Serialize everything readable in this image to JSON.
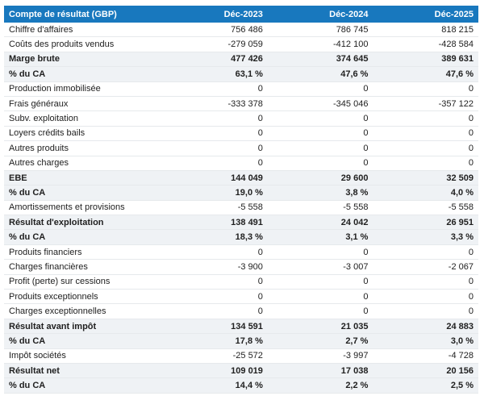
{
  "colors": {
    "header_bg": "#1878be",
    "header_text": "#ffffff",
    "emphasis_row_bg": "#eff2f5",
    "row_border": "#e6e9ec",
    "body_text": "#212121"
  },
  "chart_data": {
    "type": "table",
    "title": "Compte de résultat (GBP)",
    "columns": [
      "Compte de résultat (GBP)",
      "Déc-2023",
      "Déc-2024",
      "Déc-2025"
    ],
    "rows": [
      {
        "label": "Chiffre d'affaires",
        "values": [
          "756 486",
          "786 745",
          "818 215"
        ],
        "emphasis": false
      },
      {
        "label": "Coûts des produits vendus",
        "values": [
          "-279 059",
          "-412 100",
          "-428 584"
        ],
        "emphasis": false
      },
      {
        "label": "Marge brute",
        "values": [
          "477 426",
          "374 645",
          "389 631"
        ],
        "emphasis": true
      },
      {
        "label": "% du CA",
        "values": [
          "63,1 %",
          "47,6 %",
          "47,6 %"
        ],
        "emphasis": true
      },
      {
        "label": "Production immobilisée",
        "values": [
          "0",
          "0",
          "0"
        ],
        "emphasis": false
      },
      {
        "label": "Frais généraux",
        "values": [
          "-333 378",
          "-345 046",
          "-357 122"
        ],
        "emphasis": false
      },
      {
        "label": "Subv. exploitation",
        "values": [
          "0",
          "0",
          "0"
        ],
        "emphasis": false
      },
      {
        "label": "Loyers crédits bails",
        "values": [
          "0",
          "0",
          "0"
        ],
        "emphasis": false
      },
      {
        "label": "Autres produits",
        "values": [
          "0",
          "0",
          "0"
        ],
        "emphasis": false
      },
      {
        "label": "Autres charges",
        "values": [
          "0",
          "0",
          "0"
        ],
        "emphasis": false
      },
      {
        "label": "EBE",
        "values": [
          "144 049",
          "29 600",
          "32 509"
        ],
        "emphasis": true
      },
      {
        "label": "% du CA",
        "values": [
          "19,0 %",
          "3,8 %",
          "4,0 %"
        ],
        "emphasis": true
      },
      {
        "label": "Amortissements et provisions",
        "values": [
          "-5 558",
          "-5 558",
          "-5 558"
        ],
        "emphasis": false
      },
      {
        "label": "Résultat d'exploitation",
        "values": [
          "138 491",
          "24 042",
          "26 951"
        ],
        "emphasis": true
      },
      {
        "label": "% du CA",
        "values": [
          "18,3 %",
          "3,1 %",
          "3,3 %"
        ],
        "emphasis": true
      },
      {
        "label": "Produits financiers",
        "values": [
          "0",
          "0",
          "0"
        ],
        "emphasis": false
      },
      {
        "label": "Charges financières",
        "values": [
          "-3 900",
          "-3 007",
          "-2 067"
        ],
        "emphasis": false
      },
      {
        "label": "Profit (perte) sur cessions",
        "values": [
          "0",
          "0",
          "0"
        ],
        "emphasis": false
      },
      {
        "label": "Produits exceptionnels",
        "values": [
          "0",
          "0",
          "0"
        ],
        "emphasis": false
      },
      {
        "label": "Charges exceptionnelles",
        "values": [
          "0",
          "0",
          "0"
        ],
        "emphasis": false
      },
      {
        "label": "Résultat avant impôt",
        "values": [
          "134 591",
          "21 035",
          "24 883"
        ],
        "emphasis": true
      },
      {
        "label": "% du CA",
        "values": [
          "17,8 %",
          "2,7 %",
          "3,0 %"
        ],
        "emphasis": true
      },
      {
        "label": "Impôt sociétés",
        "values": [
          "-25 572",
          "-3 997",
          "-4 728"
        ],
        "emphasis": false
      },
      {
        "label": "Résultat net",
        "values": [
          "109 019",
          "17 038",
          "20 156"
        ],
        "emphasis": true
      },
      {
        "label": "% du CA",
        "values": [
          "14,4 %",
          "2,2 %",
          "2,5 %"
        ],
        "emphasis": true
      }
    ]
  }
}
